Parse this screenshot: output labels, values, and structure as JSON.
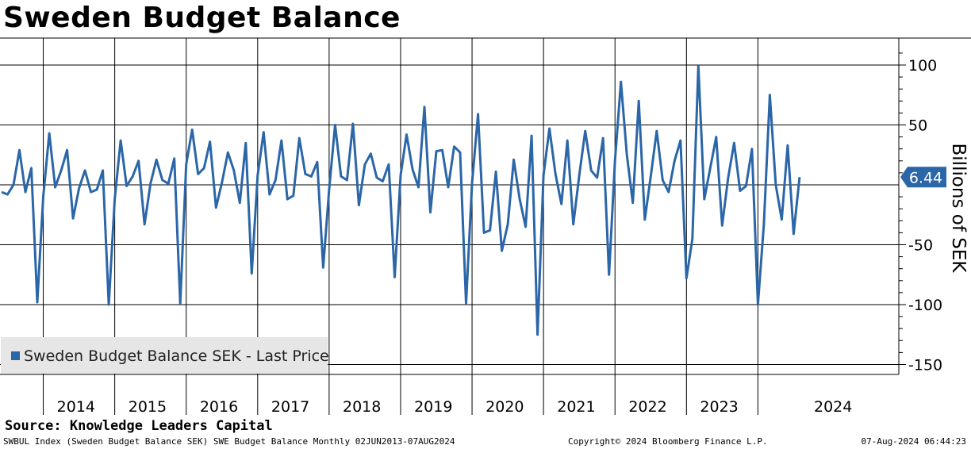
{
  "title": "Sweden Budget Balance",
  "source": "Source: Knowledge Leaders Capital",
  "footer": {
    "left": "SWBUL Index (Sweden Budget Balance SEK) SWE Budget Balance  Monthly 02JUN2013-07AUG2024",
    "middle": "Copyright© 2024 Bloomberg Finance L.P.",
    "right": "07-Aug-2024 06:44:23"
  },
  "legend": {
    "label": "Sweden Budget Balance SEK - Last Price"
  },
  "colors": {
    "series": "#2b66a8",
    "last_price_tag": "#2b66a8"
  },
  "chart_data": {
    "type": "line",
    "title": "Sweden Budget Balance",
    "ylabel": "Billions of SEK",
    "xlabel": "",
    "ylim": [
      -165,
      117
    ],
    "yticks": [
      100,
      50,
      -50,
      -100,
      -150
    ],
    "ytick_labels": [
      "100",
      "50",
      "-50",
      "-100",
      "-150"
    ],
    "year_labels": [
      "2014",
      "2015",
      "2016",
      "2017",
      "2018",
      "2019",
      "2020",
      "2021",
      "2022",
      "2023",
      "2024"
    ],
    "last_price": 6.44,
    "last_price_label": "6.44",
    "series": [
      {
        "name": "Sweden Budget Balance SEK - Last Price",
        "start": "2013-06",
        "frequency": "monthly",
        "values": [
          -6,
          -8,
          0,
          29,
          -6,
          14,
          -98,
          -10,
          43,
          -2,
          12,
          29,
          -28,
          -3,
          12,
          -6,
          -4,
          12,
          -100,
          -12,
          37,
          -1,
          7,
          20,
          -33,
          1,
          21,
          4,
          1,
          22,
          -99,
          17,
          46,
          9,
          14,
          36,
          -19,
          2,
          27,
          12,
          -15,
          35,
          -74,
          8,
          44,
          -8,
          4,
          37,
          -12,
          -9,
          39,
          9,
          7,
          19,
          -69,
          -4,
          50,
          7,
          4,
          51,
          -17,
          17,
          26,
          6,
          3,
          17,
          -77,
          8,
          42,
          13,
          -2,
          65,
          -23,
          28,
          29,
          -2,
          32,
          27,
          -99,
          2,
          59,
          -40,
          -38,
          11,
          -55,
          -33,
          21,
          -12,
          -35,
          41,
          -125,
          8,
          47,
          9,
          -16,
          37,
          -33,
          8,
          45,
          12,
          6,
          39,
          -75,
          20,
          86,
          25,
          -15,
          70,
          -29,
          7,
          45,
          4,
          -6,
          20,
          37,
          -78,
          -45,
          99,
          -12,
          14,
          40,
          -34,
          6,
          35,
          -5,
          -1,
          30,
          -100,
          -33,
          75,
          0,
          -29,
          33,
          -41,
          6.44
        ]
      }
    ]
  }
}
